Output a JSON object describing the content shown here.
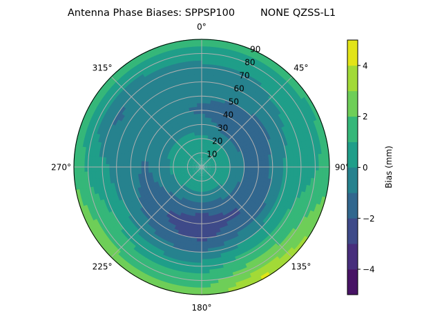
{
  "chart_data": {
    "type": "heatmap",
    "subtype": "polar-contour",
    "title": "Antenna Phase Biases: SPPSP100        NONE QZSS-L1",
    "theta_direction": "clockwise",
    "theta_zero": "top",
    "theta_tick_labels": [
      "0°",
      "45°",
      "90°",
      "135°",
      "180°",
      "225°",
      "270°",
      "315°"
    ],
    "r_tick_labels": [
      "10",
      "20",
      "30",
      "40",
      "50",
      "60",
      "70",
      "80",
      "90"
    ],
    "r_range": [
      0,
      90
    ],
    "grid": true,
    "colorbar": {
      "label": "Bias (mm)",
      "levels": [
        -5,
        -4,
        -3,
        -2,
        -1,
        0,
        1,
        2,
        3,
        4,
        5
      ],
      "tick_labels": [
        "−4",
        "−2",
        "0",
        "2",
        "4"
      ],
      "tick_values": [
        -4,
        -2,
        0,
        2,
        4
      ],
      "colors": [
        "#471365",
        "#472e7c",
        "#3e4a89",
        "#31678e",
        "#26828e",
        "#1f9e89",
        "#35b779",
        "#6ece58",
        "#a2da37",
        "#e2e418"
      ],
      "colormap": "viridis"
    },
    "azimuth_deg": [
      0,
      30,
      60,
      90,
      120,
      150,
      180,
      210,
      240,
      270,
      300,
      330
    ],
    "radius": [
      0,
      10,
      20,
      30,
      40,
      50,
      60,
      70,
      80,
      90
    ],
    "values": [
      [
        0.5,
        0.5,
        0.2,
        -0.5,
        -1.2,
        -0.8,
        -0.5,
        -0.3,
        0.5,
        1.5
      ],
      [
        0.5,
        0.5,
        0.0,
        -1.2,
        -1.5,
        -1.0,
        -0.5,
        -0.2,
        0.5,
        1.8
      ],
      [
        0.5,
        0.5,
        0.0,
        -1.2,
        -1.6,
        -1.2,
        -0.3,
        0.3,
        0.5,
        1.2
      ],
      [
        0.5,
        0.5,
        0.0,
        -1.0,
        -1.5,
        -0.8,
        0.2,
        0.5,
        0.8,
        1.5
      ],
      [
        0.5,
        0.5,
        0.0,
        -1.2,
        -1.8,
        -1.2,
        0.3,
        1.2,
        2.0,
        3.0
      ],
      [
        0.5,
        0.5,
        -0.2,
        -1.5,
        -2.2,
        -1.5,
        0.0,
        1.5,
        2.8,
        4.2
      ],
      [
        0.5,
        0.5,
        -0.3,
        -1.8,
        -2.5,
        -2.2,
        -1.0,
        0.5,
        1.5,
        2.5
      ],
      [
        0.5,
        0.5,
        -0.2,
        -1.5,
        -2.2,
        -1.8,
        -0.8,
        0.5,
        1.5,
        2.5
      ],
      [
        0.5,
        0.5,
        0.0,
        -1.0,
        -1.5,
        -1.0,
        0.0,
        1.0,
        1.8,
        2.8
      ],
      [
        0.5,
        0.5,
        0.2,
        -0.5,
        -1.2,
        -0.5,
        -0.5,
        0.3,
        0.8,
        1.8
      ],
      [
        0.5,
        0.5,
        0.3,
        -0.3,
        -0.5,
        -0.5,
        -0.8,
        -1.2,
        0.2,
        1.5
      ],
      [
        0.5,
        0.5,
        0.3,
        -0.3,
        -0.8,
        -0.5,
        -0.5,
        -0.5,
        0.3,
        1.5
      ]
    ]
  }
}
